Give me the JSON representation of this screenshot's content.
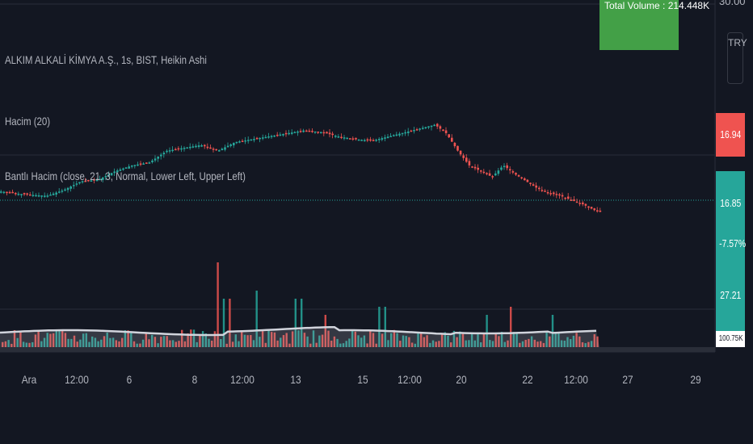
{
  "legend": {
    "title": "ALKIM ALKALİ KİMYA A.Ş., 1s, BIST, Heikin Ashi",
    "volume_indicator": "Hacim (20)",
    "band_indicator": "Bantlı Hacim (close, 21, 3, Normal, Lower Left, Upper Left)"
  },
  "callout": {
    "text": "Total Volume : 214.448K"
  },
  "price_axis": {
    "top_label": "30.00",
    "currency": "TRY",
    "tags": [
      {
        "text": "16.94",
        "color": "#ef5350"
      },
      {
        "text": "16.85",
        "color": "#26a69a"
      },
      {
        "text": "-7.57%",
        "color": "#26a69a"
      },
      {
        "text": "27.21",
        "color": "#26a69a"
      },
      {
        "text": "100.75K",
        "color": "#ffffff"
      }
    ]
  },
  "time_axis": [
    "Ara",
    "12:00",
    "6",
    "8",
    "12:00",
    "13",
    "15",
    "12:00",
    "20",
    "22",
    "12:00",
    "27",
    "29"
  ],
  "colors": {
    "up": "#26a69a",
    "down": "#ef5350",
    "background": "#131722",
    "band": "#d1d4dc"
  },
  "chart_data": {
    "type": "candlestick",
    "chart_style": "Heikin Ashi",
    "symbol": "ALKIM ALKALİ KİMYA A.Ş.",
    "interval": "1s",
    "exchange": "BIST",
    "last_price": 16.85,
    "previous_close": 16.94,
    "change_percent": -7.57,
    "price_path": [
      [
        0,
        18.2
      ],
      [
        4,
        18.0
      ],
      [
        8,
        17.9
      ],
      [
        11,
        18.3
      ],
      [
        14,
        18.9
      ],
      [
        17,
        19.0
      ],
      [
        20,
        19.6
      ],
      [
        23,
        20.0
      ],
      [
        26,
        20.2
      ],
      [
        29,
        21.0
      ],
      [
        32,
        21.2
      ],
      [
        35,
        21.4
      ],
      [
        38,
        21.0
      ],
      [
        41,
        21.6
      ],
      [
        44,
        21.8
      ],
      [
        47,
        22.0
      ],
      [
        50,
        22.2
      ],
      [
        53,
        22.4
      ],
      [
        56,
        22.3
      ],
      [
        59,
        22.0
      ],
      [
        62,
        21.8
      ],
      [
        65,
        21.7
      ],
      [
        68,
        22.0
      ],
      [
        71,
        22.3
      ],
      [
        74,
        22.6
      ],
      [
        76,
        22.8
      ],
      [
        78,
        22.2
      ],
      [
        80,
        21.0
      ],
      [
        82,
        20.0
      ],
      [
        84,
        19.6
      ],
      [
        86,
        19.2
      ],
      [
        88,
        20.0
      ],
      [
        90,
        19.4
      ],
      [
        92,
        18.9
      ],
      [
        94,
        18.4
      ],
      [
        96,
        18.1
      ],
      [
        98,
        17.9
      ],
      [
        100,
        17.6
      ],
      [
        102,
        17.3
      ],
      [
        104,
        16.9
      ],
      [
        105,
        16.85
      ]
    ],
    "volume": {
      "label": "Hacim (20)",
      "last": 100.75,
      "unit": "K",
      "ma_length": 20
    },
    "indicator": {
      "name": "Bantlı Hacim",
      "params": "close, 21, 3, Normal, Lower Left, Upper Left",
      "value": 27.21
    },
    "total_volume": "214.448K",
    "x_tick_labels": [
      "Ara",
      "12:00",
      "6",
      "8",
      "12:00",
      "13",
      "15",
      "12:00",
      "20",
      "22",
      "12:00",
      "27",
      "29"
    ]
  }
}
